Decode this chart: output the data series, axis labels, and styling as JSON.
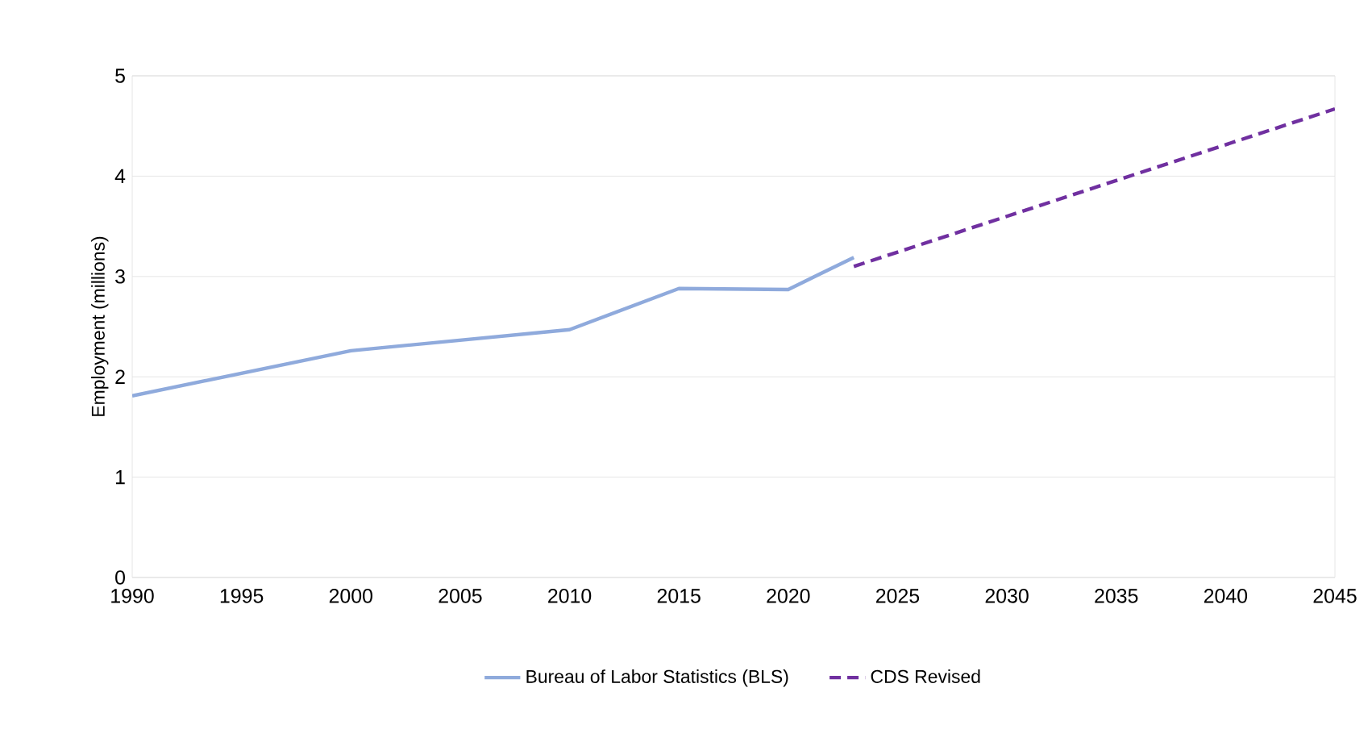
{
  "chart_data": {
    "type": "line",
    "ylabel": "Employment (millions)",
    "xlim": [
      1990,
      2045
    ],
    "ylim": [
      0,
      5
    ],
    "xticks": [
      1990,
      1995,
      2000,
      2005,
      2010,
      2015,
      2020,
      2025,
      2030,
      2035,
      2040,
      2045
    ],
    "yticks": [
      0,
      1,
      2,
      3,
      4,
      5
    ],
    "grid": "y",
    "legend": "bottom",
    "marker": "none",
    "series": [
      {
        "name": "Bureau of Labor Statistics (BLS)",
        "color": "#8faadc",
        "line_style": "solid",
        "x": [
          1990,
          2000,
          2010,
          2015,
          2020,
          2023
        ],
        "values": [
          1.81,
          2.26,
          2.47,
          2.88,
          2.87,
          3.19
        ]
      },
      {
        "name": "CDS Revised",
        "color": "#7030a0",
        "line_style": "dashed",
        "x": [
          2023,
          2045
        ],
        "values": [
          3.1,
          4.67
        ]
      }
    ]
  }
}
